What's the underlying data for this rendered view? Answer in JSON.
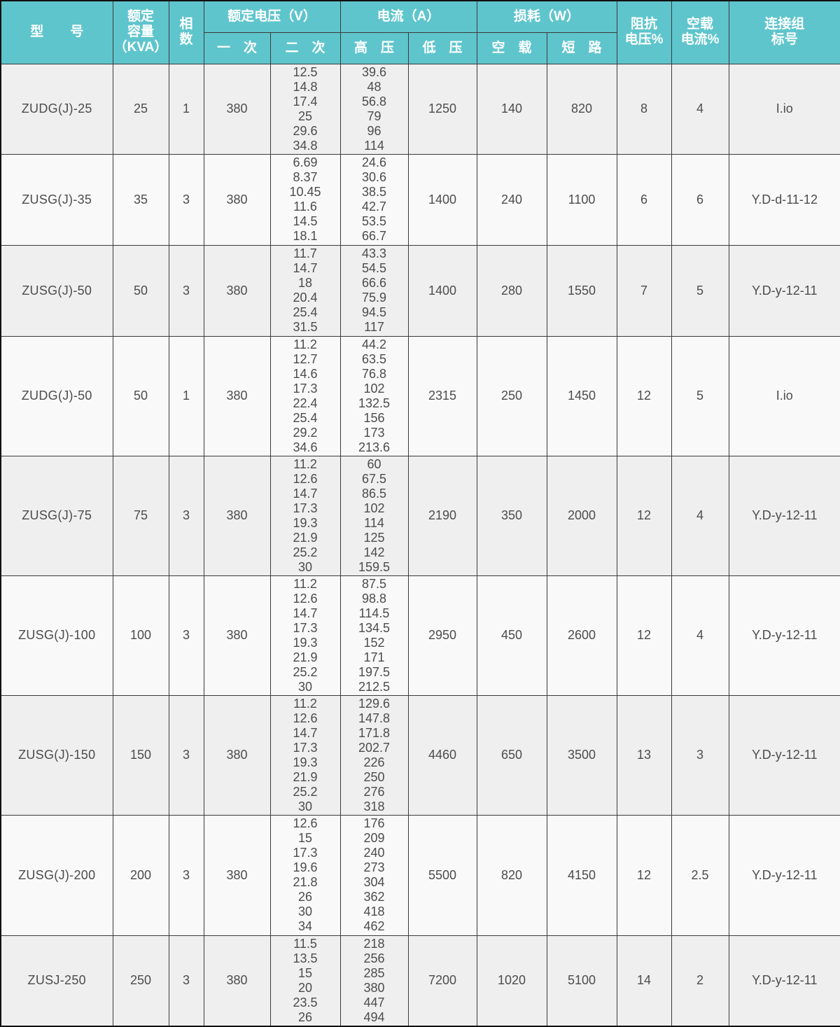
{
  "table": {
    "title_semantic": "transformer-specification-table",
    "colors": {
      "header_bg": "#5fc5cc",
      "header_text": "#ffffff",
      "row_odd": "#efefef",
      "row_even": "#f9f9f9",
      "grid": "#3a3a3a"
    },
    "headers": {
      "model": "型　　号",
      "capacity": "额定\n容量\n（KVA）",
      "phases": "相\n数",
      "voltage_group": "额定电压（V）",
      "primary": "一　次",
      "secondary": "二　次",
      "current_group": "电流（A）",
      "hv": "高　压",
      "lv": "低　压",
      "loss_group": "损耗（W）",
      "no_load": "空　载",
      "short_circuit": "短　路",
      "impedance": "阻抗\n电压%",
      "no_load_current": "空载\n电流%",
      "connection": "连接组\n标号"
    },
    "rows": [
      {
        "model": "ZUDG(J)-25",
        "capacity": "25",
        "phases": "1",
        "primary": "380",
        "secondary": [
          "12.5",
          "14.8",
          "17.4",
          "25",
          "29.6",
          "34.8"
        ],
        "hv_current": [
          "39.6",
          "48",
          "56.8",
          "79",
          "96",
          "114"
        ],
        "lv_current": "1250",
        "no_load_loss": "140",
        "short_circuit_loss": "820",
        "impedance_voltage": "8",
        "no_load_current": "4",
        "connection": "I.io"
      },
      {
        "model": "ZUSG(J)-35",
        "capacity": "35",
        "phases": "3",
        "primary": "380",
        "secondary": [
          "6.69",
          "8.37",
          "10.45",
          "11.6",
          "14.5",
          "18.1"
        ],
        "hv_current": [
          "24.6",
          "30.6",
          "38.5",
          "42.7",
          "53.5",
          "66.7"
        ],
        "lv_current": "1400",
        "no_load_loss": "240",
        "short_circuit_loss": "1100",
        "impedance_voltage": "6",
        "no_load_current": "6",
        "connection": "Y.D-d-11-12"
      },
      {
        "model": "ZUSG(J)-50",
        "capacity": "50",
        "phases": "3",
        "primary": "380",
        "secondary": [
          "11.7",
          "14.7",
          "18",
          "20.4",
          "25.4",
          "31.5"
        ],
        "hv_current": [
          "43.3",
          "54.5",
          "66.6",
          "75.9",
          "94.5",
          "117"
        ],
        "lv_current": "1400",
        "no_load_loss": "280",
        "short_circuit_loss": "1550",
        "impedance_voltage": "7",
        "no_load_current": "5",
        "connection": "Y.D-y-12-11"
      },
      {
        "model": "ZUDG(J)-50",
        "capacity": "50",
        "phases": "1",
        "primary": "380",
        "secondary": [
          "11.2",
          "12.7",
          "14.6",
          "17.3",
          "22.4",
          "25.4",
          "29.2",
          "34.6"
        ],
        "hv_current": [
          "44.2",
          "63.5",
          "76.8",
          "102",
          "132.5",
          "156",
          "173",
          "213.6"
        ],
        "lv_current": "2315",
        "no_load_loss": "250",
        "short_circuit_loss": "1450",
        "impedance_voltage": "12",
        "no_load_current": "5",
        "connection": "I.io"
      },
      {
        "model": "ZUSG(J)-75",
        "capacity": "75",
        "phases": "3",
        "primary": "380",
        "secondary": [
          "11.2",
          "12.6",
          "14.7",
          "17.3",
          "19.3",
          "21.9",
          "25.2",
          "30"
        ],
        "hv_current": [
          "60",
          "67.5",
          "86.5",
          "102",
          "114",
          "125",
          "142",
          "159.5"
        ],
        "lv_current": "2190",
        "no_load_loss": "350",
        "short_circuit_loss": "2000",
        "impedance_voltage": "12",
        "no_load_current": "4",
        "connection": "Y.D-y-12-11"
      },
      {
        "model": "ZUSG(J)-100",
        "capacity": "100",
        "phases": "3",
        "primary": "380",
        "secondary": [
          "11.2",
          "12.6",
          "14.7",
          "17.3",
          "19.3",
          "21.9",
          "25.2",
          "30"
        ],
        "hv_current": [
          "87.5",
          "98.8",
          "114.5",
          "134.5",
          "152",
          "171",
          "197.5",
          "212.5"
        ],
        "lv_current": "2950",
        "no_load_loss": "450",
        "short_circuit_loss": "2600",
        "impedance_voltage": "12",
        "no_load_current": "4",
        "connection": "Y.D-y-12-11"
      },
      {
        "model": "ZUSG(J)-150",
        "capacity": "150",
        "phases": "3",
        "primary": "380",
        "secondary": [
          "11.2",
          "12.6",
          "14.7",
          "17.3",
          "19.3",
          "21.9",
          "25.2",
          "30"
        ],
        "hv_current": [
          "129.6",
          "147.8",
          "171.8",
          "202.7",
          "226",
          "250",
          "276",
          "318"
        ],
        "lv_current": "4460",
        "no_load_loss": "650",
        "short_circuit_loss": "3500",
        "impedance_voltage": "13",
        "no_load_current": "3",
        "connection": "Y.D-y-12-11"
      },
      {
        "model": "ZUSG(J)-200",
        "capacity": "200",
        "phases": "3",
        "primary": "380",
        "secondary": [
          "12.6",
          "15",
          "17.3",
          "19.6",
          "21.8",
          "26",
          "30",
          "34"
        ],
        "hv_current": [
          "176",
          "209",
          "240",
          "273",
          "304",
          "362",
          "418",
          "462"
        ],
        "lv_current": "5500",
        "no_load_loss": "820",
        "short_circuit_loss": "4150",
        "impedance_voltage": "12",
        "no_load_current": "2.5",
        "connection": "Y.D-y-12-11"
      },
      {
        "model": "ZUSJ-250",
        "capacity": "250",
        "phases": "3",
        "primary": "380",
        "secondary": [
          "11.5",
          "13.5",
          "15",
          "20",
          "23.5",
          "26"
        ],
        "hv_current": [
          "218",
          "256",
          "285",
          "380",
          "447",
          "494"
        ],
        "lv_current": "7200",
        "no_load_loss": "1020",
        "short_circuit_loss": "5100",
        "impedance_voltage": "14",
        "no_load_current": "2",
        "connection": "Y.D-y-12-11"
      }
    ]
  }
}
